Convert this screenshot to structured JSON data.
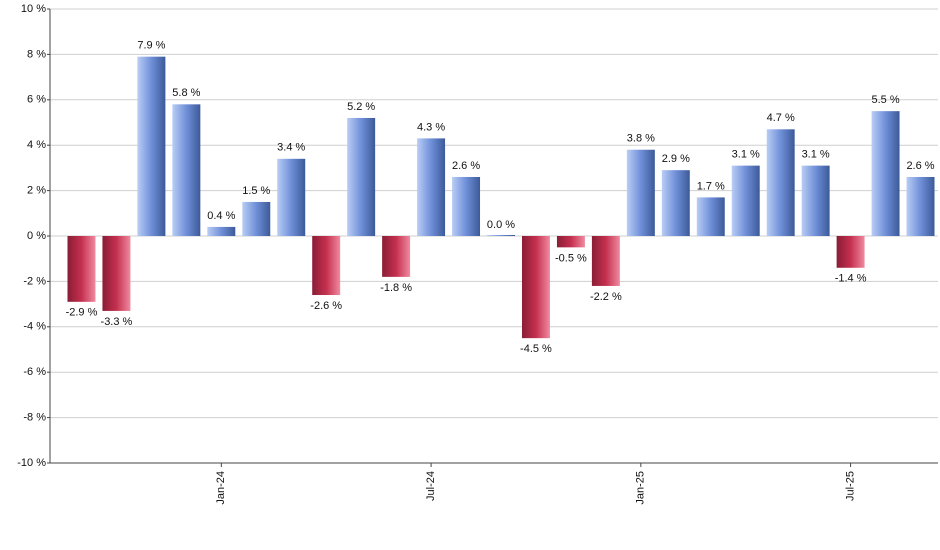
{
  "chart_data": {
    "type": "bar",
    "categories": [
      null,
      null,
      null,
      null,
      "Jan-24",
      null,
      null,
      null,
      null,
      null,
      "Jul-24",
      null,
      null,
      null,
      null,
      null,
      "Jan-25",
      null,
      null,
      null,
      null,
      null,
      "Jul-25",
      null,
      null
    ],
    "values": [
      -2.9,
      -3.3,
      7.9,
      5.8,
      0.4,
      1.5,
      3.4,
      -2.6,
      5.2,
      -1.8,
      4.3,
      2.6,
      0.0,
      -4.5,
      -0.5,
      -2.2,
      3.8,
      2.9,
      1.7,
      3.1,
      4.7,
      3.1,
      -1.4,
      5.5,
      2.6
    ],
    "value_labels": [
      "-2.9 %",
      "-3.3 %",
      "7.9 %",
      "5.8 %",
      "0.4 %",
      "1.5 %",
      "3.4 %",
      "-2.6 %",
      "5.2 %",
      "-1.8 %",
      "4.3 %",
      "2.6 %",
      "0.0 %",
      "-4.5 %",
      "-0.5 %",
      "-2.2 %",
      "3.8 %",
      "2.9 %",
      "1.7 %",
      "3.1 %",
      "4.7 %",
      "3.1 %",
      "-1.4 %",
      "5.5 %",
      "2.6 %"
    ],
    "positive_color": "#6f8fd8",
    "negative_color": "#c4304f",
    "ylim": [
      -10,
      10
    ],
    "yticks": [
      {
        "value": -10,
        "label": "-10 %"
      },
      {
        "value": -8,
        "label": "-8 %"
      },
      {
        "value": -6,
        "label": "-6 %"
      },
      {
        "value": -4,
        "label": "-4 %"
      },
      {
        "value": -2,
        "label": "-2 %"
      },
      {
        "value": 0,
        "label": "0 %"
      },
      {
        "value": 2,
        "label": "2 %"
      },
      {
        "value": 4,
        "label": "4 %"
      },
      {
        "value": 6,
        "label": "6 %"
      },
      {
        "value": 8,
        "label": "8 %"
      },
      {
        "value": 10,
        "label": "10 %"
      }
    ],
    "grid": true
  }
}
